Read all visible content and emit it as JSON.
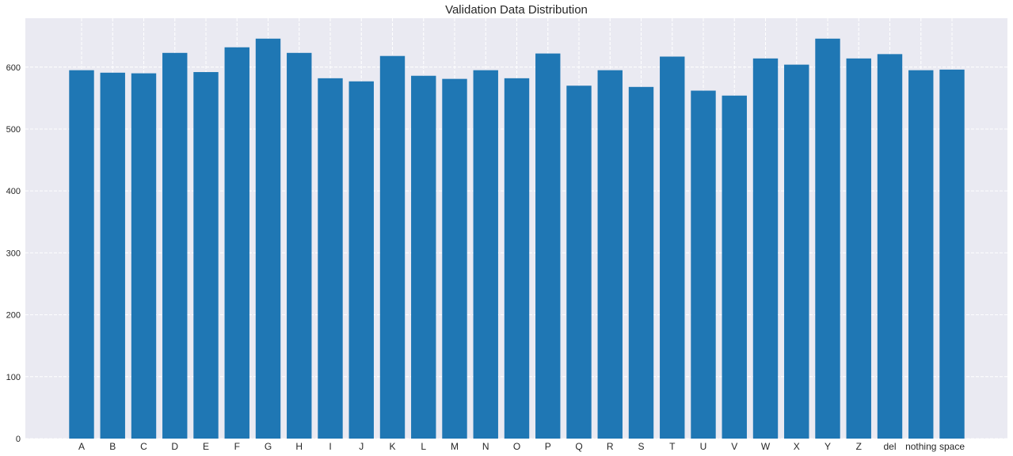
{
  "chart_data": {
    "type": "bar",
    "title": "Validation Data Distribution",
    "xlabel": "",
    "ylabel": "",
    "categories": [
      "A",
      "B",
      "C",
      "D",
      "E",
      "F",
      "G",
      "H",
      "I",
      "J",
      "K",
      "L",
      "M",
      "N",
      "O",
      "P",
      "Q",
      "R",
      "S",
      "T",
      "U",
      "V",
      "W",
      "X",
      "Y",
      "Z",
      "del",
      "nothing",
      "space"
    ],
    "values": [
      595,
      591,
      590,
      623,
      592,
      632,
      646,
      623,
      582,
      577,
      618,
      586,
      581,
      595,
      582,
      622,
      570,
      595,
      568,
      617,
      562,
      554,
      614,
      604,
      646,
      614,
      621,
      595,
      596
    ],
    "ylim": [
      0,
      679
    ],
    "yticks": [
      0,
      100,
      200,
      300,
      400,
      500,
      600
    ],
    "grid": true,
    "bar_color": "#1f77b4",
    "background_color": "#eaeaf2",
    "grid_color": "#ffffff"
  }
}
